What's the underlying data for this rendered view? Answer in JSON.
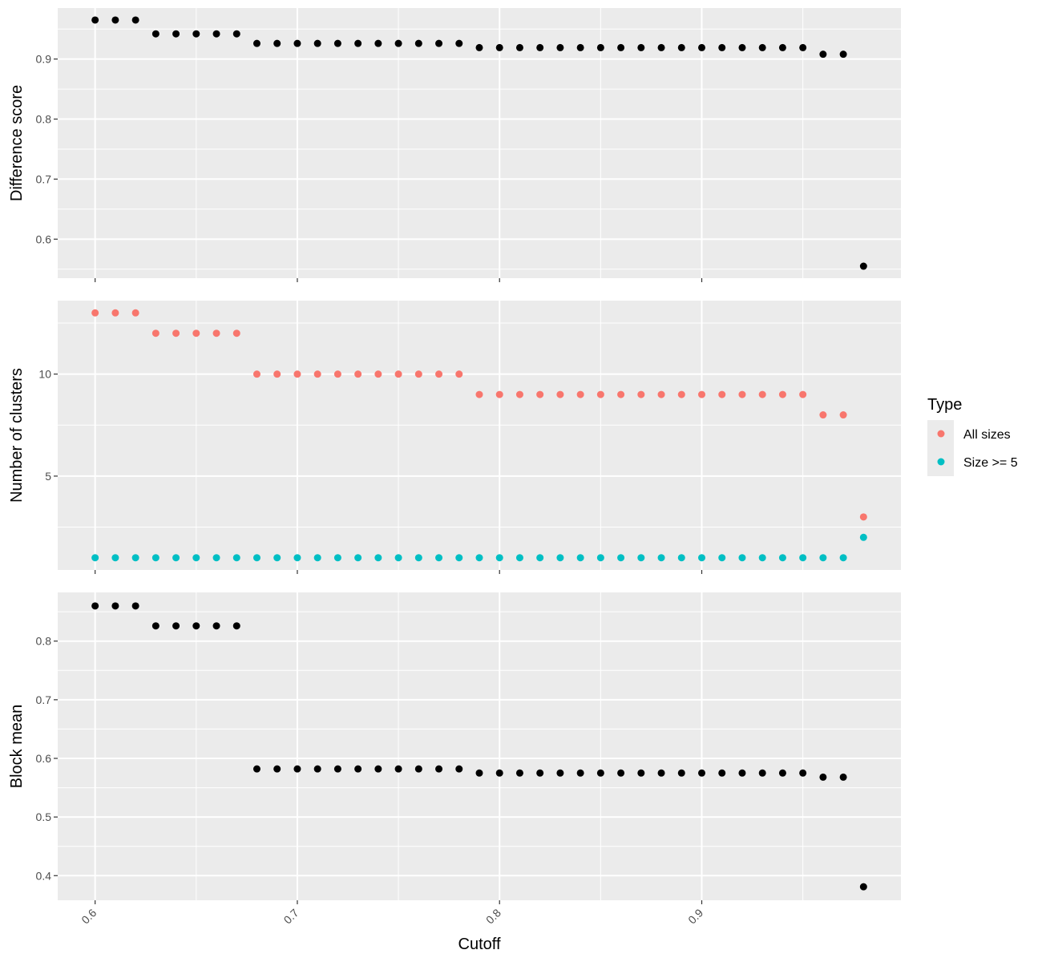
{
  "chart_data": {
    "type": "scatter",
    "xlabel": "Cutoff",
    "xlim": [
      0.5815,
      0.9985
    ],
    "x_ticks": [
      "0.6",
      "0.7",
      "0.8",
      "0.9"
    ],
    "x": [
      0.6,
      0.61,
      0.62,
      0.63,
      0.64,
      0.65,
      0.66,
      0.67,
      0.68,
      0.69,
      0.7,
      0.71,
      0.72,
      0.73,
      0.74,
      0.75,
      0.76,
      0.77,
      0.78,
      0.79,
      0.8,
      0.81,
      0.82,
      0.83,
      0.84,
      0.85,
      0.86,
      0.87,
      0.88,
      0.89,
      0.9,
      0.91,
      0.92,
      0.93,
      0.94,
      0.95,
      0.96,
      0.97,
      0.98
    ],
    "grid": true,
    "legend": {
      "title": "Type",
      "placement": "right",
      "entries": [
        {
          "label": "All sizes",
          "color": "#F8766D"
        },
        {
          "label": "Size >= 5",
          "color": "#00BFC4"
        }
      ]
    },
    "panels": [
      {
        "ylabel": "Difference score",
        "ylim": [
          0.535,
          0.985
        ],
        "y_ticks": [
          "0.6",
          "0.7",
          "0.8",
          "0.9"
        ],
        "series": [
          {
            "color": "#000000",
            "values": [
              0.965,
              0.965,
              0.965,
              0.942,
              0.942,
              0.942,
              0.942,
              0.942,
              0.926,
              0.926,
              0.926,
              0.926,
              0.926,
              0.926,
              0.926,
              0.926,
              0.926,
              0.926,
              0.926,
              0.919,
              0.919,
              0.919,
              0.919,
              0.919,
              0.919,
              0.919,
              0.919,
              0.919,
              0.919,
              0.919,
              0.919,
              0.919,
              0.919,
              0.919,
              0.919,
              0.919,
              0.908,
              0.908,
              0.555
            ]
          }
        ]
      },
      {
        "ylabel": "Number of clusters",
        "ylim": [
          0.4,
          13.6
        ],
        "y_ticks": [
          "5",
          "10"
        ],
        "series": [
          {
            "name": "All sizes",
            "color": "#F8766D",
            "values": [
              13,
              13,
              13,
              12,
              12,
              12,
              12,
              12,
              10,
              10,
              10,
              10,
              10,
              10,
              10,
              10,
              10,
              10,
              10,
              9,
              9,
              9,
              9,
              9,
              9,
              9,
              9,
              9,
              9,
              9,
              9,
              9,
              9,
              9,
              9,
              9,
              8,
              8,
              3
            ]
          },
          {
            "name": "Size >= 5",
            "color": "#00BFC4",
            "values": [
              1,
              1,
              1,
              1,
              1,
              1,
              1,
              1,
              1,
              1,
              1,
              1,
              1,
              1,
              1,
              1,
              1,
              1,
              1,
              1,
              1,
              1,
              1,
              1,
              1,
              1,
              1,
              1,
              1,
              1,
              1,
              1,
              1,
              1,
              1,
              1,
              1,
              1,
              2
            ]
          }
        ]
      },
      {
        "ylabel": "Block mean",
        "ylim": [
          0.358,
          0.883
        ],
        "y_ticks": [
          "0.4",
          "0.5",
          "0.6",
          "0.7",
          "0.8"
        ],
        "series": [
          {
            "color": "#000000",
            "values": [
              0.86,
              0.86,
              0.86,
              0.826,
              0.826,
              0.826,
              0.826,
              0.826,
              0.582,
              0.582,
              0.582,
              0.582,
              0.582,
              0.582,
              0.582,
              0.582,
              0.582,
              0.582,
              0.582,
              0.575,
              0.575,
              0.575,
              0.575,
              0.575,
              0.575,
              0.575,
              0.575,
              0.575,
              0.575,
              0.575,
              0.575,
              0.575,
              0.575,
              0.575,
              0.575,
              0.575,
              0.568,
              0.568,
              0.381
            ]
          }
        ]
      }
    ]
  }
}
